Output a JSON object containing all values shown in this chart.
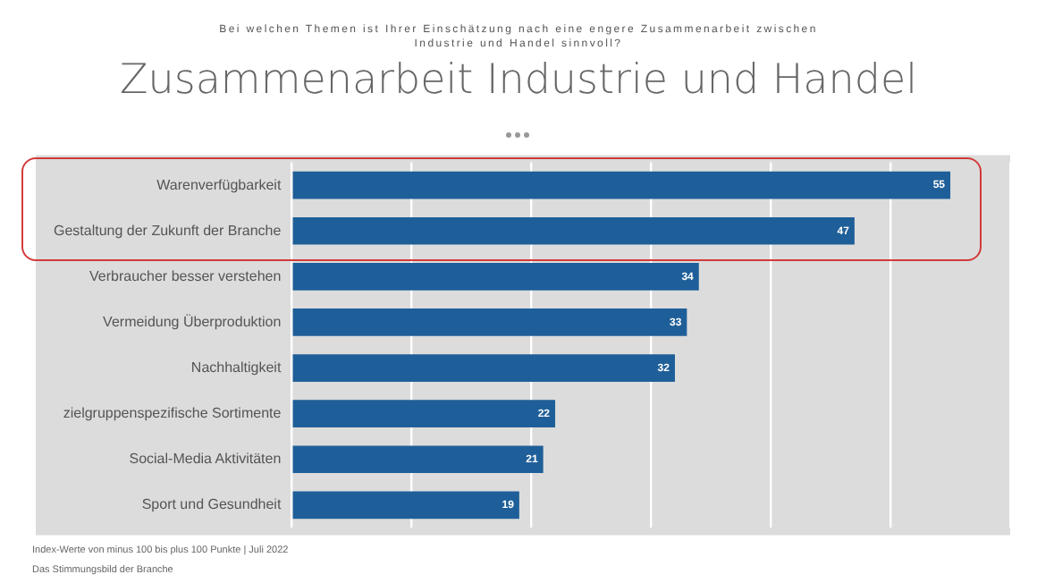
{
  "chart_data": {
    "type": "bar",
    "orientation": "horizontal",
    "title": "Zusammenarbeit Industrie und Handel",
    "subtitle": "Bei welchen Themen ist Ihrer Einschätzung nach eine engere Zusammenarbeit zwischen Industrie und Handel sinnvoll?",
    "categories": [
      "Warenverfügbarkeit",
      "Gestaltung der Zukunft der Branche",
      "Verbraucher besser verstehen",
      "Vermeidung Überproduktion",
      "Nachhaltigkeit",
      "zielgruppenspezifische Sortimente",
      "Social-Media Aktivitäten",
      "Sport und Gesundheit"
    ],
    "values": [
      55,
      47,
      34,
      33,
      32,
      22,
      21,
      19
    ],
    "color": "#1f5f99",
    "xlim": [
      0,
      60
    ],
    "xticks": [
      {
        "value": 0,
        "label": null
      },
      {
        "value": 10,
        "label": null
      },
      {
        "value": 20,
        "label": null
      },
      {
        "value": 30,
        "label": null
      },
      {
        "value": 40,
        "label": null
      },
      {
        "value": 50,
        "label": null
      },
      {
        "value": 60,
        "label": null
      }
    ],
    "tick_labels": "y",
    "grid": "x",
    "legend": false,
    "data_labels": true,
    "annotations": [
      "Index-Werte von minus 100 bis plus 100 Punkte | Juli 2022",
      "Das Stimmungsbild der Branche"
    ]
  }
}
